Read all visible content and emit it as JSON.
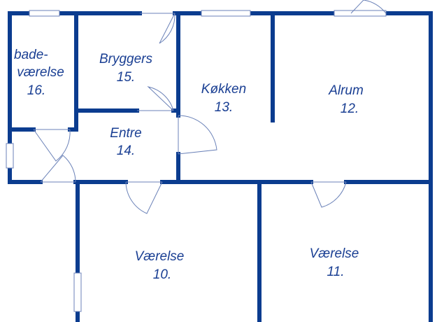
{
  "rooms": [
    {
      "lines": [
        "bade-",
        "værelse",
        "16."
      ]
    },
    {
      "lines": [
        "Bryggers",
        "15."
      ]
    },
    {
      "lines": [
        "Køkken",
        "13."
      ]
    },
    {
      "lines": [
        "Alrum",
        "12."
      ]
    },
    {
      "lines": [
        "Entre",
        "14."
      ]
    },
    {
      "lines": [
        "Værelse",
        "10."
      ]
    },
    {
      "lines": [
        "Værelse",
        "11."
      ]
    }
  ]
}
